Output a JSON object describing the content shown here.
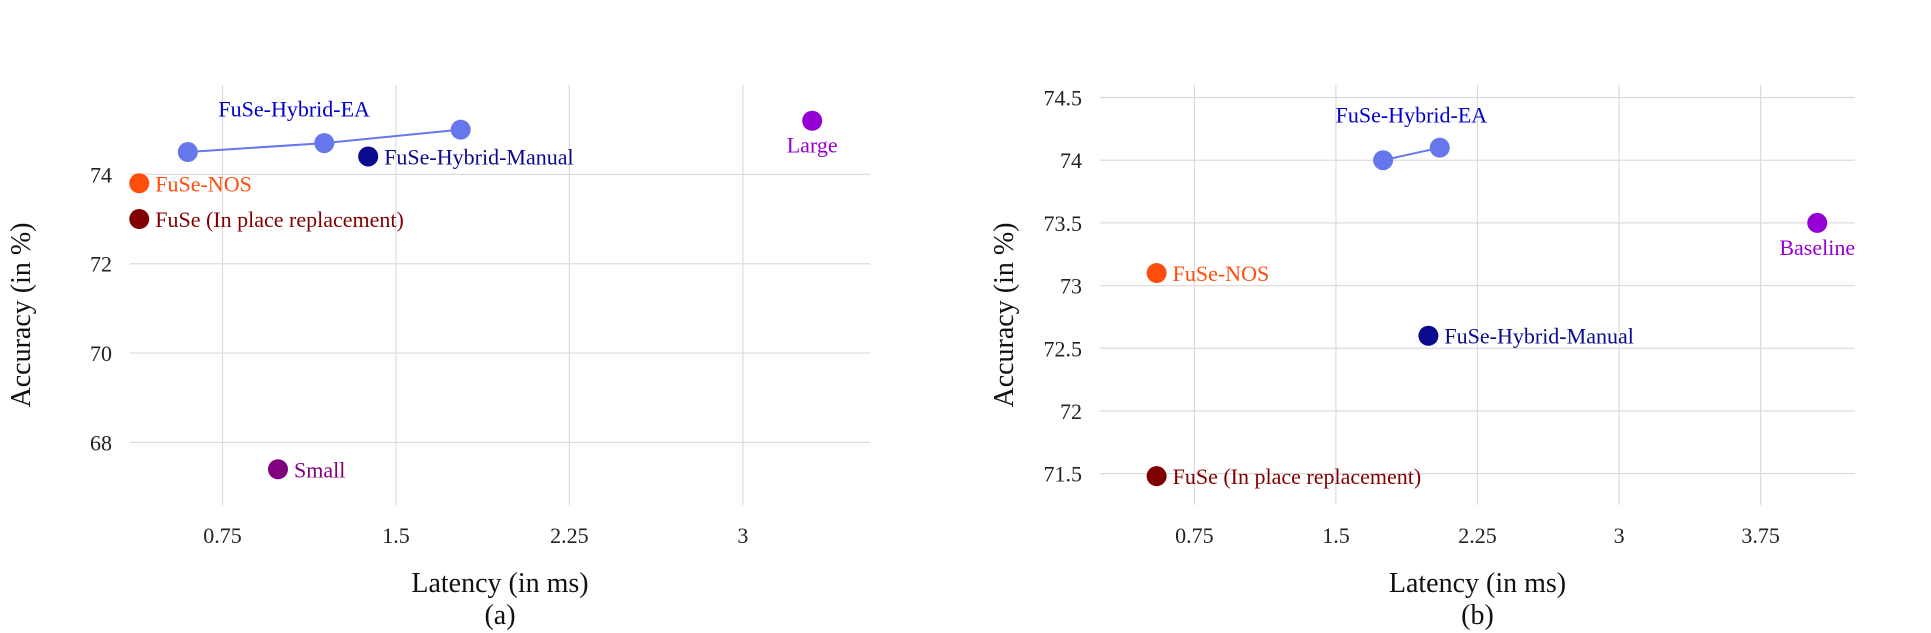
{
  "chart_data": [
    {
      "type": "scatter",
      "caption": "(a)",
      "xlabel": "Latency (in ms)",
      "ylabel": "Accuracy (in %)",
      "xlim": [
        0.35,
        3.55
      ],
      "ylim": [
        66.6,
        76.0
      ],
      "xticks": [
        0.75,
        1.5,
        2.25,
        3
      ],
      "xtick_labels": [
        "0.75",
        "1.5",
        "2.25",
        "3"
      ],
      "yticks": [
        68,
        70,
        72,
        74
      ],
      "ytick_labels": [
        "68",
        "70",
        "72",
        "74"
      ],
      "grid": true,
      "lines": [
        {
          "points": [
            [
              0.6,
              74.5
            ],
            [
              1.19,
              74.7
            ],
            [
              1.78,
              75.0
            ]
          ],
          "color": "#6677ee"
        }
      ],
      "points": [
        {
          "x": 0.6,
          "y": 74.5,
          "color": "#6677ee"
        },
        {
          "x": 1.19,
          "y": 74.7,
          "color": "#6677ee"
        },
        {
          "x": 1.78,
          "y": 75.0,
          "color": "#6677ee"
        },
        {
          "x": 1.38,
          "y": 74.4,
          "color": "#0a0a8c",
          "label": "FuSe-Hybrid-Manual",
          "label_pos": "right"
        },
        {
          "x": 0.39,
          "y": 73.8,
          "color": "#ff4d0d",
          "label": "FuSe-NOS",
          "label_pos": "right"
        },
        {
          "x": 0.39,
          "y": 73.0,
          "color": "#800000",
          "label": "FuSe (In place replacement)",
          "label_pos": "right"
        },
        {
          "x": 0.99,
          "y": 67.4,
          "color": "#800080",
          "label": "Small",
          "label_pos": "right"
        },
        {
          "x": 3.3,
          "y": 75.2,
          "color": "#9400d3",
          "label": "Large",
          "label_pos": "below"
        }
      ],
      "annotations": [
        {
          "text": "FuSe-Hybrid-EA",
          "x": 1.06,
          "y": 75.3,
          "color": "#0000cc"
        }
      ]
    },
    {
      "type": "scatter",
      "caption": "(b)",
      "xlabel": "Latency (in ms)",
      "ylabel": "Accuracy (in %)",
      "xlim": [
        0.25,
        4.25
      ],
      "ylim": [
        71.25,
        74.6
      ],
      "xticks": [
        0.75,
        1.5,
        2.25,
        3,
        3.75
      ],
      "xtick_labels": [
        "0.75",
        "1.5",
        "2.25",
        "3",
        "3.75"
      ],
      "yticks": [
        71.5,
        72,
        72.5,
        73,
        73.5,
        74,
        74.5
      ],
      "ytick_labels": [
        "71.5",
        "72",
        "72.5",
        "73",
        "73.5",
        "74",
        "74.5"
      ],
      "grid": true,
      "lines": [
        {
          "points": [
            [
              1.75,
              74.0
            ],
            [
              2.05,
              74.1
            ]
          ],
          "color": "#6677ee"
        }
      ],
      "points": [
        {
          "x": 1.75,
          "y": 74.0,
          "color": "#6677ee"
        },
        {
          "x": 2.05,
          "y": 74.1,
          "color": "#6677ee"
        },
        {
          "x": 0.55,
          "y": 73.1,
          "color": "#ff4d0d",
          "label": "FuSe-NOS",
          "label_pos": "right"
        },
        {
          "x": 1.99,
          "y": 72.6,
          "color": "#0a0a8c",
          "label": "FuSe-Hybrid-Manual",
          "label_pos": "right"
        },
        {
          "x": 0.55,
          "y": 71.48,
          "color": "#800000",
          "label": "FuSe (In place replacement)",
          "label_pos": "right"
        },
        {
          "x": 4.05,
          "y": 73.5,
          "color": "#9400d3",
          "label": "Baseline",
          "label_pos": "below"
        }
      ],
      "annotations": [
        {
          "text": "FuSe-Hybrid-EA",
          "x": 1.9,
          "y": 74.3,
          "color": "#0000cc"
        }
      ]
    }
  ]
}
